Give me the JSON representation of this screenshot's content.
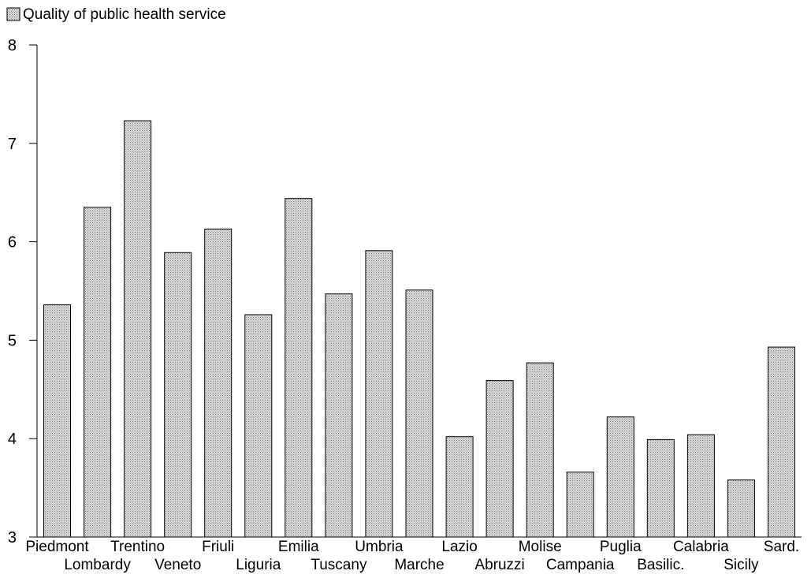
{
  "chart_data": {
    "type": "bar",
    "title": "",
    "xlabel": "",
    "ylabel": "",
    "ylim": [
      3,
      8
    ],
    "yticks": [
      3,
      4,
      5,
      6,
      7,
      8
    ],
    "legend": {
      "position": "top-left",
      "label": "Quality of public health service"
    },
    "grid": false,
    "colors": {
      "bar_fill": "#d9d9d9",
      "bar_pattern_dot": "#7a7a7a",
      "stroke": "#000000"
    },
    "categories": [
      "Piedmont",
      "Lombardy",
      "Trentino",
      "Veneto",
      "Friuli",
      "Liguria",
      "Emilia",
      "Tuscany",
      "Umbria",
      "Marche",
      "Lazio",
      "Abruzzi",
      "Molise",
      "Campania",
      "Puglia",
      "Basilic.",
      "Calabria",
      "Sicily",
      "Sard."
    ],
    "series": [
      {
        "name": "Quality of public health service",
        "values": [
          5.36,
          6.35,
          7.23,
          5.89,
          6.13,
          5.26,
          6.44,
          5.47,
          5.91,
          5.51,
          4.02,
          4.59,
          4.77,
          3.66,
          4.22,
          3.99,
          4.04,
          3.58,
          4.93
        ]
      }
    ]
  }
}
